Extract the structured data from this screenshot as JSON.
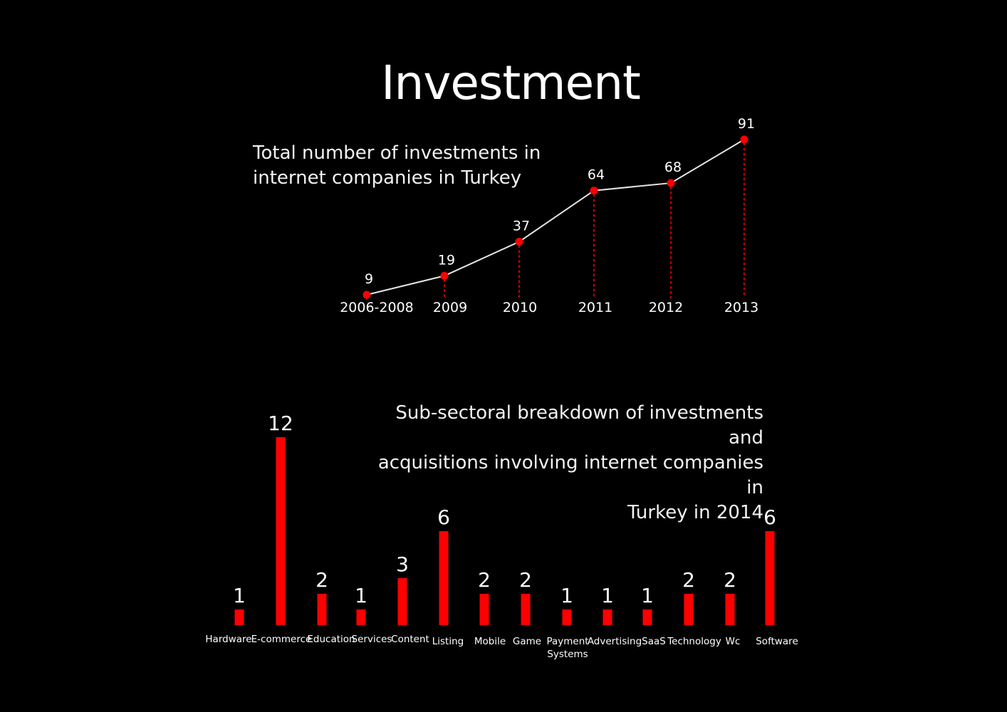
{
  "page": {
    "title": "Investment"
  },
  "colors": {
    "background": "#000000",
    "accent": "#ff0000",
    "line": "#e6e6e6",
    "text": "#ffffff"
  },
  "chart_data": [
    {
      "type": "line",
      "title_lines": [
        "Total number of investments in",
        "internet companies in Turkey"
      ],
      "categories": [
        "2006-2008",
        "2009",
        "2010",
        "2011",
        "2012",
        "2013"
      ],
      "values": [
        9,
        19,
        37,
        64,
        68,
        91
      ],
      "data_labels": [
        "9",
        "19",
        "37",
        "64",
        "68",
        "91"
      ],
      "grid": false,
      "drop_lines": "dotted-red"
    },
    {
      "type": "bar",
      "title_lines": [
        "Sub-sectoral breakdown of investments and",
        "acquisitions involving internet companies in",
        "Turkey in 2014"
      ],
      "categories": [
        "Hardware",
        "E-commerce",
        "Education",
        "Services",
        "Content",
        "Listing",
        "Mobile",
        "Game",
        "Payment Systems",
        "Advertising",
        "SaaS",
        "Technology",
        "Wc",
        "Software"
      ],
      "category_lines": [
        [
          "Hardware"
        ],
        [
          "E-commerce"
        ],
        [
          "Education"
        ],
        [
          "Services"
        ],
        [
          "Content"
        ],
        [
          "Listing"
        ],
        [
          "Mobile"
        ],
        [
          "Game"
        ],
        [
          "Payment",
          "Systems"
        ],
        [
          "Advertising"
        ],
        [
          "SaaS"
        ],
        [
          "Technology"
        ],
        [
          "Wc"
        ],
        [
          "Software"
        ]
      ],
      "values": [
        1,
        12,
        2,
        1,
        3,
        6,
        2,
        2,
        1,
        1,
        1,
        2,
        2,
        6
      ],
      "data_labels": [
        "1",
        "12",
        "2",
        "1",
        "3",
        "6",
        "2",
        "2",
        "1",
        "1",
        "1",
        "2",
        "2",
        "6"
      ]
    }
  ]
}
